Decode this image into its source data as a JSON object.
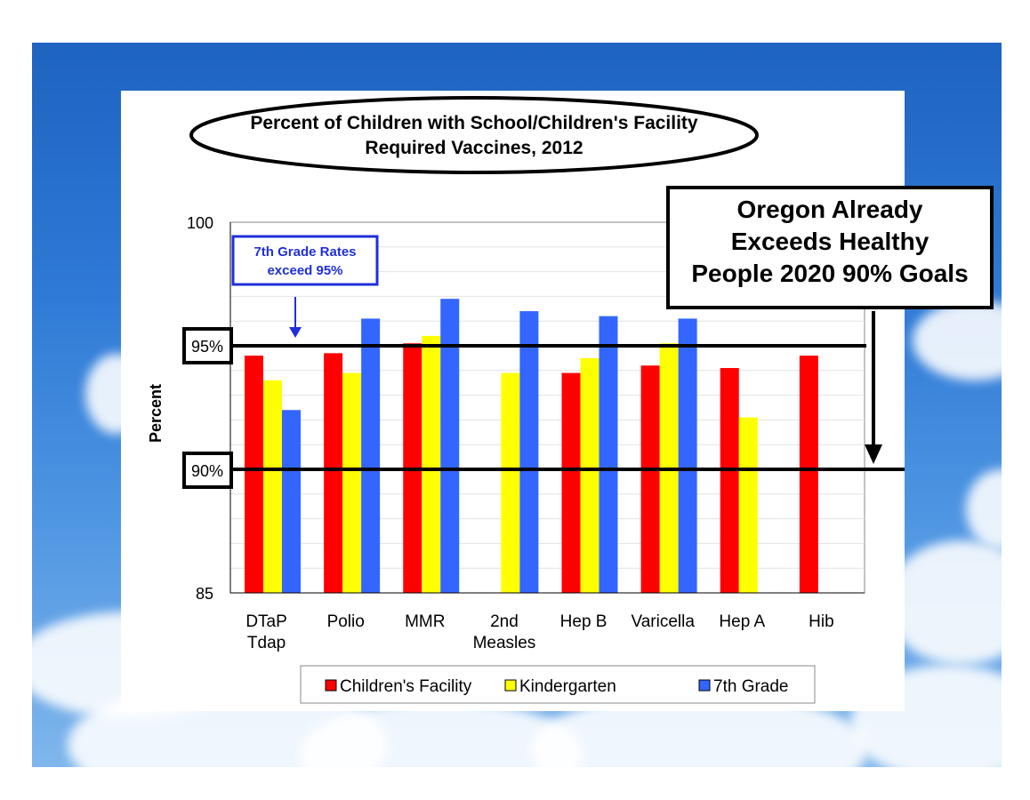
{
  "chart_data": {
    "type": "bar",
    "title_lines": [
      "Percent of Children with School/Children's Facility",
      "Required Vaccines, 2012"
    ],
    "ylabel": "Percent",
    "xlabel": "",
    "ylim": [
      85,
      100
    ],
    "yticks": [
      "100",
      "95%",
      "90%",
      "85"
    ],
    "categories": [
      [
        "DTaP",
        "Tdap"
      ],
      [
        "Polio"
      ],
      [
        "MMR"
      ],
      [
        "2nd",
        "Measles"
      ],
      [
        "Hep B"
      ],
      [
        "Varicella"
      ],
      [
        "Hep A"
      ],
      [
        "Hib"
      ]
    ],
    "series": [
      {
        "name": "Children's Facility",
        "color": "#ff0000",
        "values": [
          94.6,
          94.7,
          95.1,
          null,
          93.9,
          94.2,
          94.1,
          94.6
        ]
      },
      {
        "name": "Kindergarten",
        "color": "#ffff00",
        "values": [
          93.6,
          93.9,
          95.4,
          93.9,
          94.5,
          95.1,
          92.1,
          null
        ]
      },
      {
        "name": "7th Grade",
        "color": "#3366ff",
        "values": [
          92.4,
          96.1,
          96.9,
          96.4,
          96.2,
          96.1,
          null,
          null
        ]
      }
    ],
    "reference_lines": [
      95,
      90
    ],
    "grid": true,
    "legend_position": "bottom",
    "annotations": {
      "blue_note_lines": [
        "7th Grade Rates",
        "exceed 95%"
      ],
      "callout_lines": [
        "Oregon Already",
        "Exceeds Healthy",
        "People 2020 90% Goals"
      ]
    }
  }
}
